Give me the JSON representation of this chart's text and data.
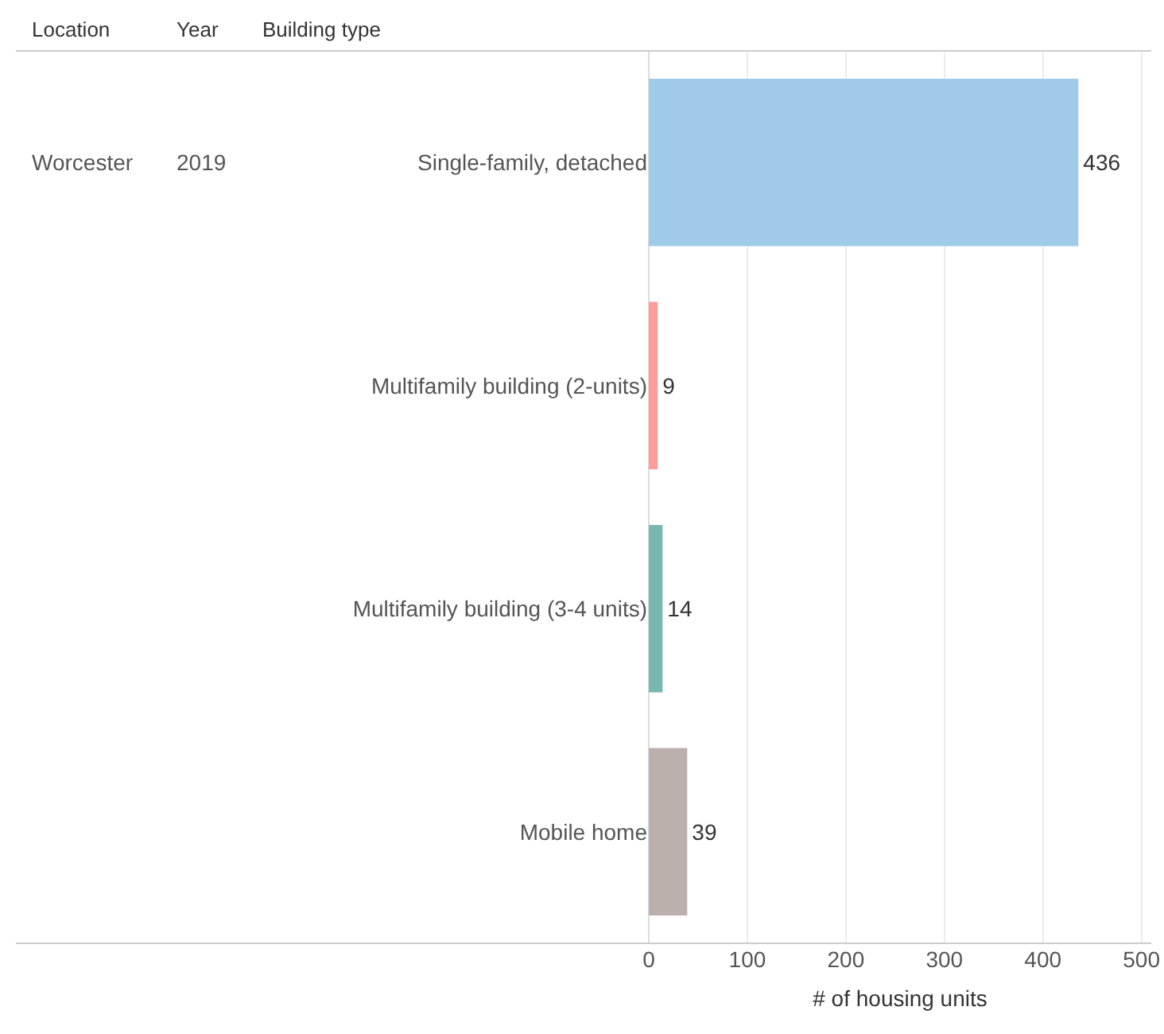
{
  "chart_data": {
    "type": "bar",
    "orientation": "horizontal",
    "xlabel": "# of housing units",
    "categories": [
      "Single-family, detached",
      "Multifamily building (2-units)",
      "Multifamily building (3-4 units)",
      "Mobile home"
    ],
    "values": [
      436,
      9,
      14,
      39
    ],
    "colors": [
      "#a0cbe8",
      "#ff9d9a",
      "#79b8b0",
      "#bab0ac"
    ],
    "xlim": [
      0,
      510
    ],
    "xticks": [
      0,
      100,
      200,
      300,
      400,
      500
    ],
    "grid": "x",
    "data_labels": true,
    "annotations": [
      "Location",
      "Year",
      "Building type",
      "Worcester",
      "2019"
    ]
  }
}
